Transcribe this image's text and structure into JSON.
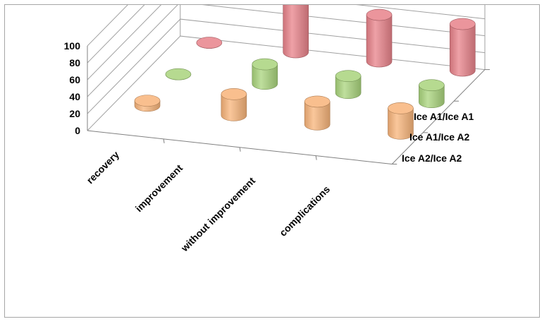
{
  "chart_data": {
    "type": "bar",
    "bar_shape": "cylinder",
    "projection": "3d",
    "title": "",
    "categories": [
      "recovery",
      "improvement",
      "without improvement",
      "complications"
    ],
    "series": [
      {
        "name": "Ice A1/Ice A1",
        "values": [
          0,
          73,
          55,
          55
        ],
        "color": "#e8828a"
      },
      {
        "name": "Ice A1/Ice A2",
        "values": [
          0,
          23,
          20,
          20
        ],
        "color": "#a9d47c"
      },
      {
        "name": "Ice A2/Ice A2",
        "values": [
          6,
          25,
          27,
          30
        ],
        "color": "#f8b47a"
      }
    ],
    "yticks": [
      0,
      20,
      40,
      60,
      80,
      100
    ],
    "ylim": [
      0,
      100
    ],
    "grid": true,
    "legend": "none"
  }
}
